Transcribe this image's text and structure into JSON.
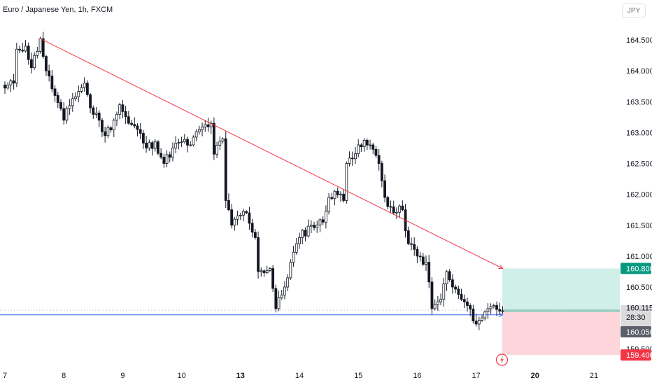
{
  "header": {
    "symbol_title": "Euro / Japanese Yen, 1h, FXCM",
    "currency_button": "JPY"
  },
  "colors": {
    "up": "#089981",
    "down": "#f23645",
    "candle": "#131722",
    "trendline": "#f23645",
    "support_line": "#2962ff",
    "target_zone": "#d1efe9",
    "stop_zone": "#fcd6da",
    "target_tag": "#089981",
    "stop_tag": "#f23645",
    "current_tag": "#dbdbdb",
    "level_tag": "#5d606b"
  },
  "icons": {
    "alert": "lightning-icon"
  },
  "chart_data": {
    "type": "candlestick",
    "title": "Euro / Japanese Yen, 1h, FXCM",
    "y_axis": {
      "ticks": [
        "164.500",
        "164.000",
        "163.500",
        "163.000",
        "162.500",
        "162.000",
        "161.500",
        "161.000",
        "160.500",
        "159.500"
      ],
      "tick_values": [
        164.5,
        164.0,
        163.5,
        163.0,
        162.5,
        162.0,
        161.5,
        161.0,
        160.5,
        159.5
      ],
      "range": [
        159.1,
        165.05
      ]
    },
    "x_axis": {
      "labels": [
        "7",
        "8",
        "9",
        "10",
        "13",
        "14",
        "15",
        "16",
        "17",
        "20",
        "21"
      ],
      "bold_labels": [
        "13",
        "20"
      ],
      "label_bar_index": [
        0,
        20,
        40,
        60,
        80,
        100,
        120,
        140,
        160,
        180,
        200
      ]
    },
    "price_tags": {
      "target": "160.800",
      "current": "160.115",
      "countdown": "28:30",
      "support": "160.050",
      "stop": "159.400"
    },
    "position": {
      "entry": 160.115,
      "target": 160.8,
      "stop": 159.4
    },
    "support_level": 160.05,
    "trendline": {
      "start": {
        "bar": 12,
        "price": 164.52
      },
      "end": {
        "bar": 169,
        "price": 160.8
      }
    },
    "keypoints": [
      [
        0,
        163.72
      ],
      [
        3,
        163.8
      ],
      [
        4,
        164.35
      ],
      [
        7,
        164.4
      ],
      [
        9,
        164.05
      ],
      [
        12,
        164.52
      ],
      [
        14,
        164.0
      ],
      [
        17,
        163.6
      ],
      [
        20,
        163.2
      ],
      [
        23,
        163.55
      ],
      [
        27,
        163.8
      ],
      [
        29,
        163.4
      ],
      [
        32,
        163.2
      ],
      [
        34,
        162.95
      ],
      [
        37,
        163.2
      ],
      [
        39,
        163.45
      ],
      [
        42,
        163.15
      ],
      [
        45,
        163.05
      ],
      [
        48,
        162.75
      ],
      [
        51,
        162.85
      ],
      [
        54,
        162.5
      ],
      [
        57,
        162.75
      ],
      [
        60,
        162.85
      ],
      [
        63,
        162.8
      ],
      [
        66,
        163.05
      ],
      [
        70,
        163.15
      ],
      [
        71,
        162.65
      ],
      [
        74,
        162.9
      ],
      [
        75,
        161.9
      ],
      [
        77,
        161.5
      ],
      [
        79,
        161.65
      ],
      [
        82,
        161.7
      ],
      [
        85,
        161.3
      ],
      [
        86,
        160.75
      ],
      [
        90,
        160.8
      ],
      [
        92,
        160.15
      ],
      [
        95,
        160.5
      ],
      [
        97,
        160.9
      ],
      [
        100,
        161.3
      ],
      [
        104,
        161.5
      ],
      [
        108,
        161.55
      ],
      [
        110,
        161.95
      ],
      [
        112,
        162.05
      ],
      [
        115,
        161.9
      ],
      [
        116,
        162.5
      ],
      [
        120,
        162.8
      ],
      [
        124,
        162.8
      ],
      [
        127,
        162.5
      ],
      [
        129,
        161.95
      ],
      [
        132,
        161.7
      ],
      [
        135,
        161.75
      ],
      [
        137,
        161.2
      ],
      [
        140,
        161.0
      ],
      [
        143,
        160.9
      ],
      [
        145,
        160.15
      ],
      [
        148,
        160.3
      ],
      [
        150,
        160.75
      ],
      [
        152,
        160.5
      ],
      [
        155,
        160.3
      ],
      [
        157,
        160.2
      ],
      [
        159,
        159.95
      ],
      [
        162,
        160.0
      ],
      [
        164,
        160.15
      ],
      [
        166,
        160.2
      ],
      [
        169,
        160.115
      ]
    ]
  }
}
